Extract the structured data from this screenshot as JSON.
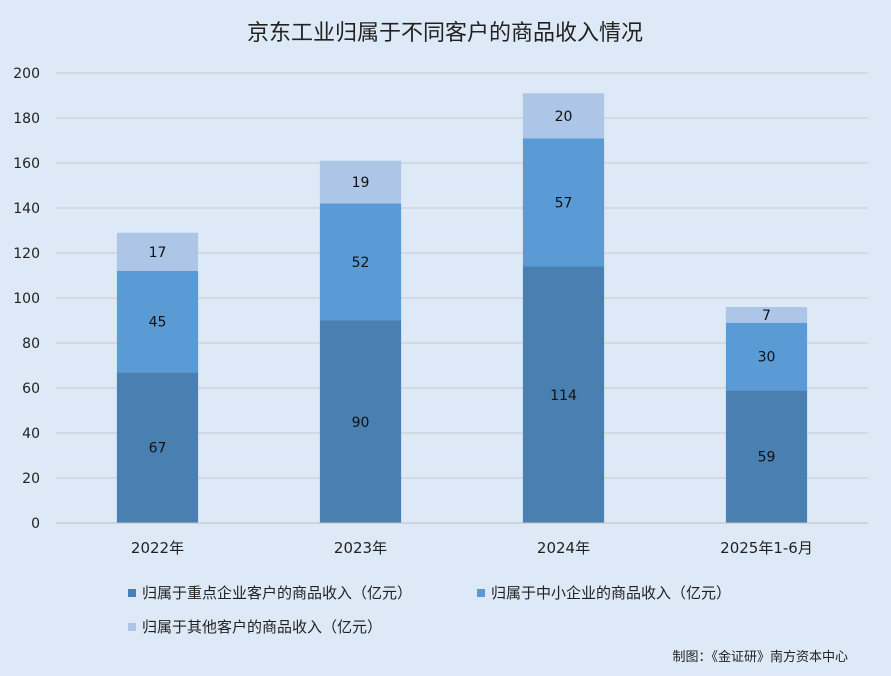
{
  "chart_data": {
    "type": "bar",
    "stacked": true,
    "title": "京东工业归属于不同客户的商品收入情况",
    "categories": [
      "2022年",
      "2023年",
      "2024年",
      "2025年1-6月"
    ],
    "series": [
      {
        "name": "归属于重点企业客户的商品收入（亿元）",
        "values": [
          67,
          90,
          114,
          59
        ],
        "color": "#4a7fb1"
      },
      {
        "name": "归属于中小企业的商品收入（亿元）",
        "values": [
          45,
          52,
          57,
          30
        ],
        "color": "#5b9bd5"
      },
      {
        "name": "归属于其他客户的商品收入（亿元）",
        "values": [
          17,
          19,
          20,
          7
        ],
        "color": "#adc5e6"
      }
    ],
    "ylim": [
      0,
      200
    ],
    "yticks": [
      0,
      20,
      40,
      60,
      80,
      100,
      120,
      140,
      160,
      180,
      200
    ],
    "grid": true,
    "legend_position": "bottom"
  },
  "credit": "制图：《金证研》南方资本中心",
  "colors": {
    "background": "#dde9f6",
    "gridline": "#c9c9c9"
  }
}
